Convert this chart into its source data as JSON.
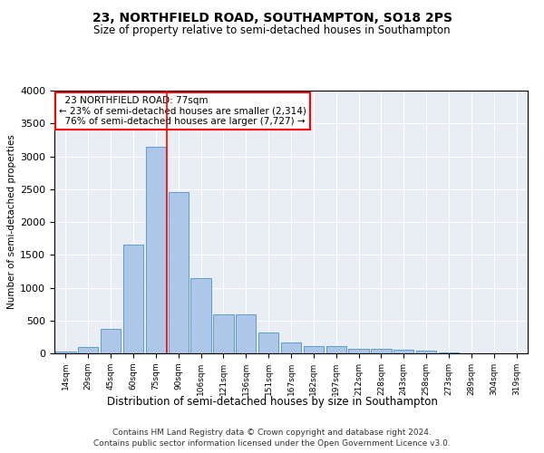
{
  "title": "23, NORTHFIELD ROAD, SOUTHAMPTON, SO18 2PS",
  "subtitle": "Size of property relative to semi-detached houses in Southampton",
  "xlabel": "Distribution of semi-detached houses by size in Southampton",
  "ylabel": "Number of semi-detached properties",
  "footer1": "Contains HM Land Registry data © Crown copyright and database right 2024.",
  "footer2": "Contains public sector information licensed under the Open Government Licence v3.0.",
  "property_label": "23 NORTHFIELD ROAD: 77sqm",
  "pct_smaller": 23,
  "count_smaller": 2314,
  "pct_larger": 76,
  "count_larger": 7727,
  "bar_color": "#aec6e8",
  "bar_edge_color": "#5b9bd5",
  "marker_line_color": "red",
  "categories": [
    "14sqm",
    "29sqm",
    "45sqm",
    "60sqm",
    "75sqm",
    "90sqm",
    "106sqm",
    "121sqm",
    "136sqm",
    "151sqm",
    "167sqm",
    "182sqm",
    "197sqm",
    "212sqm",
    "228sqm",
    "243sqm",
    "258sqm",
    "273sqm",
    "289sqm",
    "304sqm",
    "319sqm"
  ],
  "values": [
    30,
    100,
    370,
    1650,
    3150,
    2450,
    1150,
    600,
    600,
    320,
    170,
    110,
    110,
    75,
    65,
    55,
    40,
    15,
    5,
    5,
    5
  ],
  "ylim": [
    0,
    4000
  ],
  "yticks": [
    0,
    500,
    1000,
    1500,
    2000,
    2500,
    3000,
    3500,
    4000
  ],
  "marker_bin_index": 4,
  "bg_color": "#e8eef4"
}
